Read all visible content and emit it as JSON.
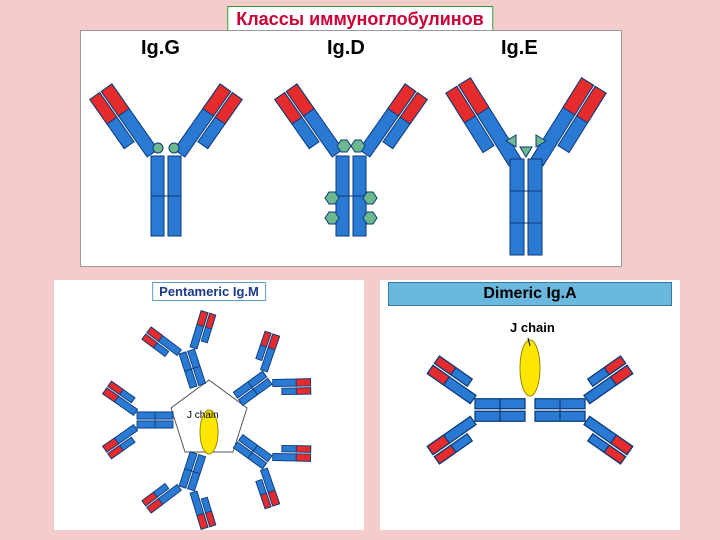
{
  "title": "Классы иммуноглобулинов",
  "top": {
    "labels": {
      "igg": "Ig.G",
      "igd": "Ig.D",
      "ige": "Ig.E"
    }
  },
  "bottom": {
    "igm_title": "Pentameric Ig.M",
    "iga_title": "Dimeric Ig.A",
    "j_chain": "J chain"
  },
  "colors": {
    "heavy_blue": "#1e6bc4",
    "heavy_blue_fill": "#2a7ad4",
    "light_red": "#e52b2b",
    "hinge_green": "#6db88f",
    "j_yellow": "#ffe600",
    "outline": "#0a3a7a",
    "panel_bg": "#ffffff",
    "page_bg": "#f5cccc",
    "title_color": "#cc0033"
  },
  "chart": {
    "type": "infographic",
    "monomer_size": {
      "w": 140,
      "h": 180
    },
    "igm_units": 5,
    "iga_units": 2
  }
}
